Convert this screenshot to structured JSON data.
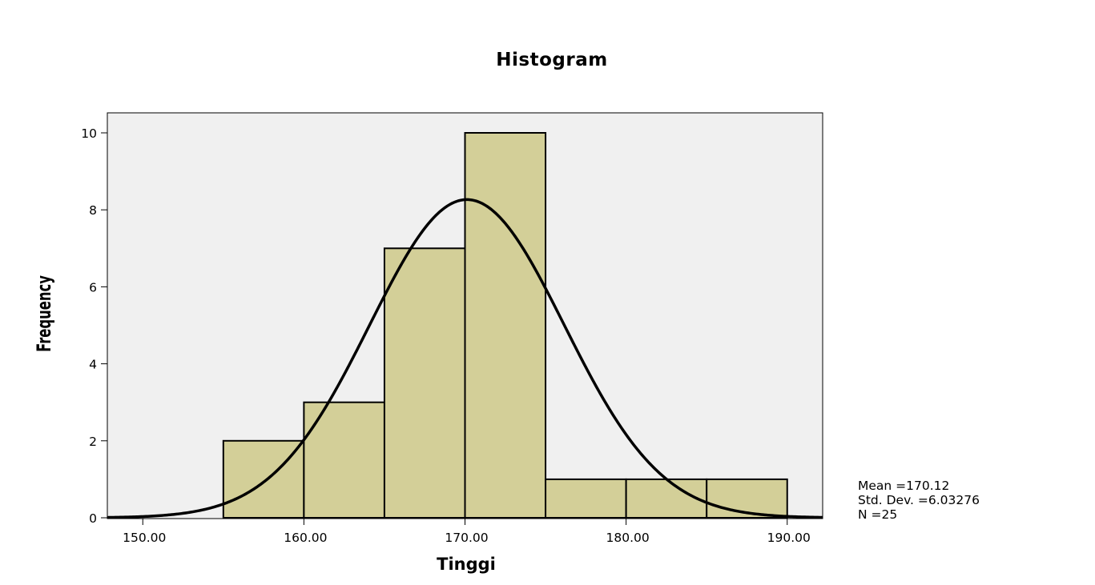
{
  "chart_data": {
    "type": "histogram",
    "title": "Histogram",
    "xlabel": "Tinggi",
    "ylabel": "Frequency",
    "bins": [
      {
        "start": 155,
        "end": 160,
        "count": 2
      },
      {
        "start": 160,
        "end": 165,
        "count": 3
      },
      {
        "start": 165,
        "end": 170,
        "count": 7
      },
      {
        "start": 170,
        "end": 175,
        "count": 10
      },
      {
        "start": 175,
        "end": 180,
        "count": 1
      },
      {
        "start": 180,
        "end": 185,
        "count": 1
      },
      {
        "start": 185,
        "end": 190,
        "count": 1
      }
    ],
    "x_ticks": [
      "150.00",
      "160.00",
      "170.00",
      "180.00",
      "190.00"
    ],
    "x_tick_values": [
      150,
      160,
      170,
      180,
      190
    ],
    "y_ticks": [
      0,
      2,
      4,
      6,
      8,
      10
    ],
    "xlim": [
      147.8,
      192.2
    ],
    "ylim": [
      0,
      10.5
    ],
    "normal_curve": {
      "mean": 170.12,
      "std": 6.03276,
      "n": 25,
      "bin_width": 5
    },
    "stats_text": [
      "Mean =170.12",
      "Std. Dev. =6.03276",
      "N =25"
    ],
    "bar_color": "#d3cf98",
    "plot_bg": "#f0f0f0",
    "grid": false,
    "legend": "none"
  }
}
